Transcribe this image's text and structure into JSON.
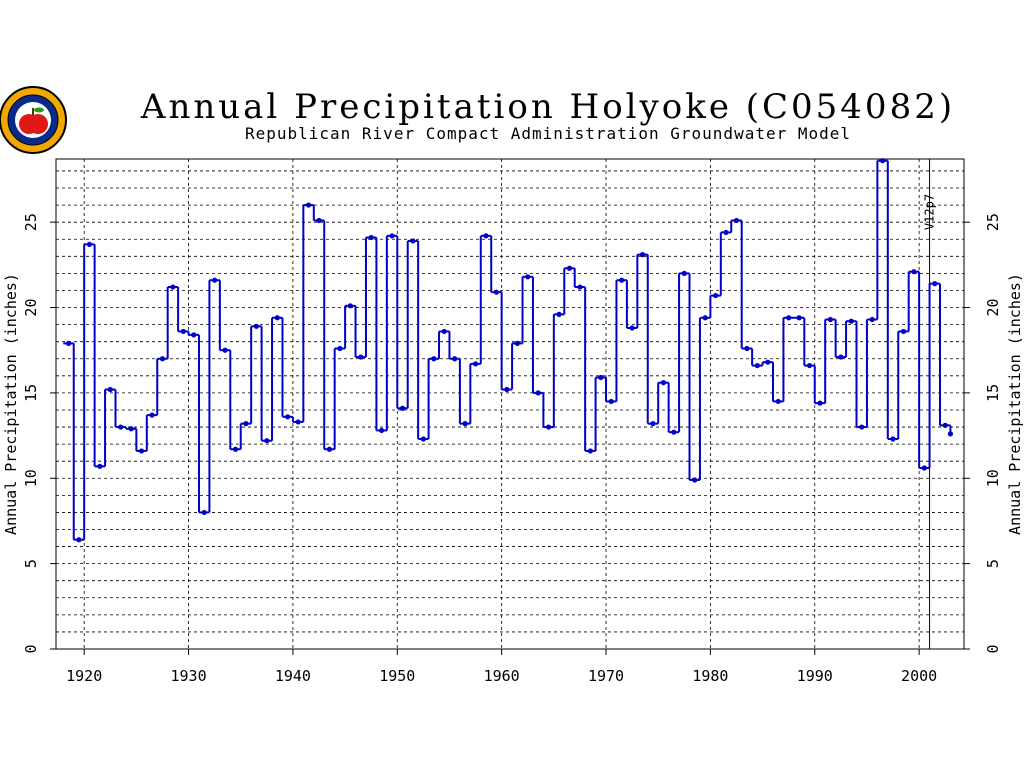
{
  "chart_data": {
    "type": "line",
    "style": "step",
    "title": "Annual Precipitation Holyoke (C054082)",
    "subtitle": "Republican River Compact Administration Groundwater Model",
    "ylabel": "Annual Precipitation (inches)",
    "xlim": [
      1917.3,
      2004.3
    ],
    "ylim": [
      0,
      28.7
    ],
    "x_ticks": [
      "1920",
      "1930",
      "1940",
      "1950",
      "1960",
      "1970",
      "1980",
      "1990",
      "2000"
    ],
    "y_ticks": [
      "0",
      "5",
      "10",
      "15",
      "20",
      "25"
    ],
    "grid": true,
    "annotation": {
      "label": "V12p7",
      "x": 2001
    },
    "line_color": "#0000c8",
    "series": [
      {
        "x": [
          1918,
          1919,
          1920,
          1921,
          1922,
          1923,
          1924,
          1925,
          1926,
          1927,
          1928,
          1929,
          1930,
          1931,
          1932,
          1933,
          1934,
          1935,
          1936,
          1937,
          1938,
          1939,
          1940,
          1941,
          1942,
          1943,
          1944,
          1945,
          1946,
          1947,
          1948,
          1949,
          1950,
          1951,
          1952,
          1953,
          1954,
          1955,
          1956,
          1957,
          1958,
          1959,
          1960,
          1961,
          1962,
          1963,
          1964,
          1965,
          1966,
          1967,
          1968,
          1969,
          1970,
          1971,
          1972,
          1973,
          1974,
          1975,
          1976,
          1977,
          1978,
          1979,
          1980,
          1981,
          1982,
          1983,
          1984,
          1985,
          1986,
          1987,
          1988,
          1989,
          1990,
          1991,
          1992,
          1993,
          1994,
          1995,
          1996,
          1997,
          1998,
          1999,
          2000,
          2001,
          2002,
          2003
        ],
        "values": [
          17.9,
          6.4,
          23.7,
          10.7,
          15.2,
          13.0,
          12.9,
          11.6,
          13.7,
          17.0,
          21.2,
          18.6,
          18.4,
          8.0,
          21.6,
          17.5,
          11.7,
          13.2,
          18.9,
          12.2,
          19.4,
          13.6,
          13.3,
          26.0,
          25.1,
          11.7,
          17.6,
          20.1,
          17.1,
          24.1,
          12.8,
          24.2,
          14.1,
          23.9,
          12.3,
          17.0,
          18.6,
          17.0,
          13.2,
          16.7,
          24.2,
          20.9,
          15.2,
          17.9,
          21.8,
          15.0,
          13.0,
          19.6,
          22.3,
          21.2,
          11.6,
          15.9,
          14.5,
          21.6,
          18.8,
          23.1,
          13.2,
          15.6,
          12.7,
          22.0,
          9.9,
          19.4,
          20.7,
          24.4,
          25.1,
          17.6,
          16.6,
          16.8,
          14.5,
          19.4,
          19.4,
          16.6,
          14.4,
          19.3,
          17.1,
          19.2,
          13.0,
          19.3,
          28.6,
          12.3,
          18.6,
          22.1,
          10.6,
          21.4,
          13.1,
          12.6
        ]
      }
    ]
  }
}
